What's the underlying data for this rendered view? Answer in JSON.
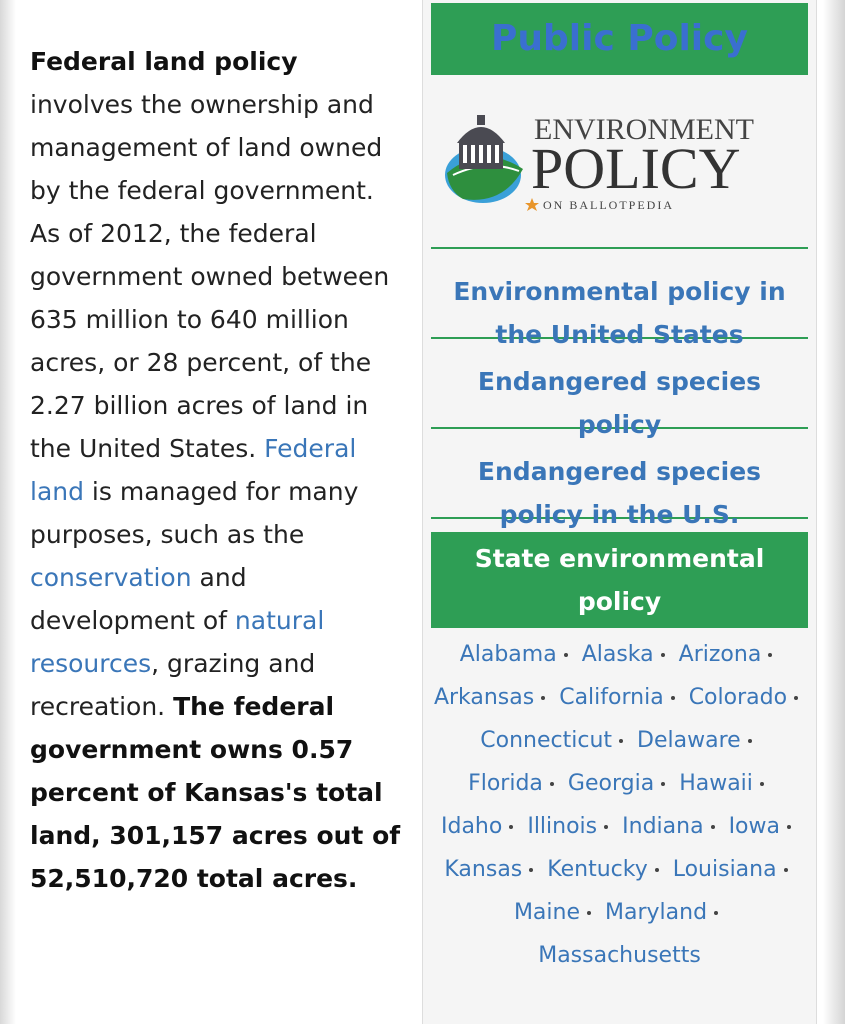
{
  "article": {
    "paragraph": [
      "Federal land policy",
      " involves the ownership and management of land owned by the federal government. As of 2012, the federal government owned between 635 million to 640 million acres, or 28 percent, of the 2.27 billion acres of land in the United States. ",
      "Federal land",
      " is managed for many purposes, such as the ",
      "conservation",
      " and development of ",
      "natural resources",
      ", grazing and recreation. ",
      "The federal government owns 0.57 percent of Kansas's total land, 301,157 acres out of 52,510,720 total acres."
    ]
  },
  "sidebar": {
    "header": "Public Policy",
    "logo": {
      "line1": "ENVIRONMENT",
      "line2": "POLICY",
      "line3": "ON BALLOTPEDIA"
    },
    "links": [
      "Environmental policy in the United States",
      "Endangered species policy",
      "Endangered species policy in the U.S."
    ],
    "state_header": "State environmental policy",
    "states": [
      "Alabama",
      "Alaska",
      "Arizona",
      "Arkansas",
      "California",
      "Colorado",
      "Connecticut",
      "Delaware",
      "Florida",
      "Georgia",
      "Hawaii",
      "Idaho",
      "Illinois",
      "Indiana",
      "Iowa",
      "Kansas",
      "Kentucky",
      "Louisiana",
      "Maine",
      "Maryland",
      "Massachusetts"
    ]
  }
}
